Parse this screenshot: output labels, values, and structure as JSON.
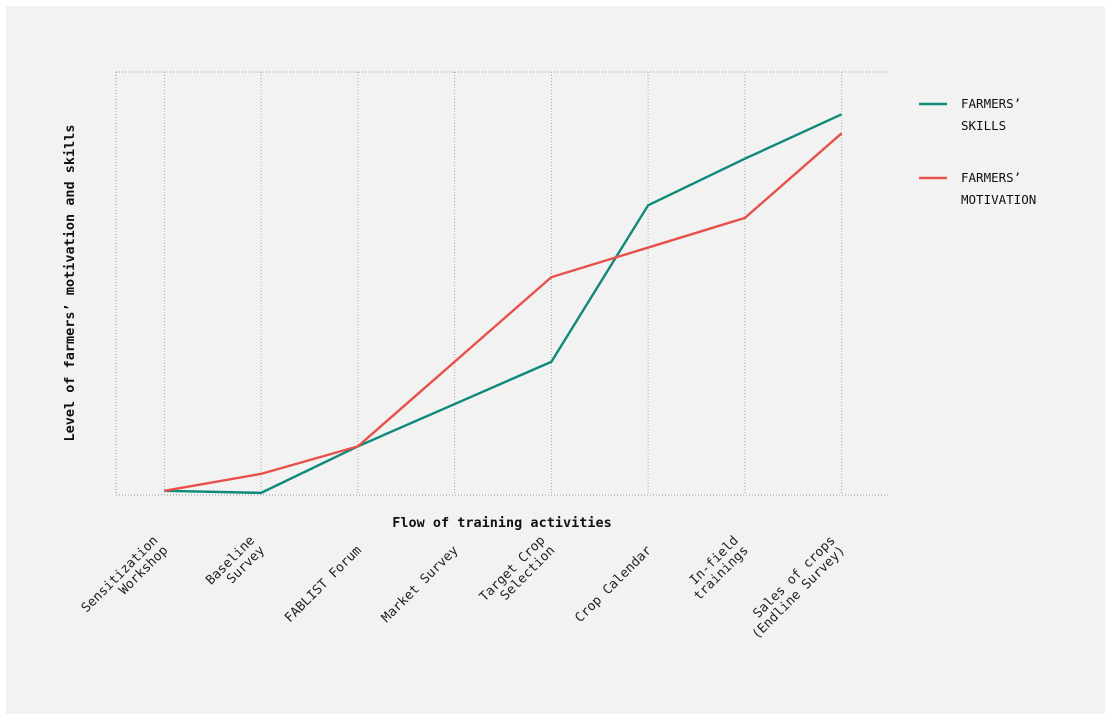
{
  "chart_data": {
    "type": "line",
    "title": "",
    "xlabel": "Flow of training activities",
    "ylabel": "Level of farmers’ motivation and skills",
    "categories": [
      "Sensitization\nWorkshop",
      "Baseline\nSurvey",
      "FABLIST Forum",
      "Market Survey",
      "Target Crop\nSelection",
      "Crop Calendar",
      "In-field\ntrainings",
      "Sales of crops\n(Endline Survey)"
    ],
    "x": [
      0,
      1,
      2,
      3,
      4,
      5,
      6,
      7
    ],
    "series": [
      {
        "name": "FARMERS’\nSKILLS",
        "color": "#0f8a78",
        "x": [
          0,
          1,
          2,
          3,
          4,
          5,
          6,
          7
        ],
        "values": [
          1,
          0.5,
          11.5,
          21.5,
          31.5,
          68.5,
          79.5,
          90
        ]
      },
      {
        "name": "FARMERS’\nMOTIVATION",
        "color": "#e8504a",
        "x": [
          0,
          1,
          2,
          3,
          4,
          5,
          6,
          7
        ],
        "values": [
          1,
          5,
          11.5,
          31.5,
          51.5,
          58.5,
          65.5,
          85.5
        ]
      }
    ],
    "xlim": [
      -0.5,
      7.5
    ],
    "ylim": [
      0,
      100
    ],
    "grid": "vertical dotted",
    "legend_position": "right"
  }
}
